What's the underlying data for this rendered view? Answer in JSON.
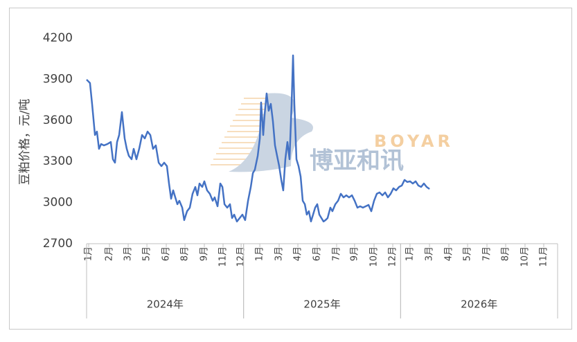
{
  "chart_data": {
    "type": "line",
    "y_axis_label": "豆粕价格，元/吨",
    "watermark": {
      "text_en": "BOYAR",
      "text_cn": "博亚和讯"
    },
    "xlim": [
      0,
      36
    ],
    "ylim": [
      2700,
      4200
    ],
    "yticks": [
      2700,
      3000,
      3300,
      3600,
      3900,
      4200
    ],
    "xticks": [
      {
        "value": 0.16,
        "label": "1月"
      },
      {
        "value": 1.75,
        "label": "2月"
      },
      {
        "value": 3.18,
        "label": "3月"
      },
      {
        "value": 4.61,
        "label": "5月"
      },
      {
        "value": 6.09,
        "label": "6月"
      },
      {
        "value": 7.52,
        "label": "8月"
      },
      {
        "value": 9.0,
        "label": "9月"
      },
      {
        "value": 10.43,
        "label": "11月"
      },
      {
        "value": 11.81,
        "label": "12月"
      },
      {
        "value": 13.24,
        "label": "1月"
      },
      {
        "value": 14.72,
        "label": "3月"
      },
      {
        "value": 16.15,
        "label": "4月"
      },
      {
        "value": 17.63,
        "label": "6月"
      },
      {
        "value": 19.11,
        "label": "7月"
      },
      {
        "value": 20.48,
        "label": "9月"
      },
      {
        "value": 21.97,
        "label": "10月"
      },
      {
        "value": 23.4,
        "label": "12月"
      },
      {
        "value": 24.72,
        "label": "1月"
      },
      {
        "value": 26.21,
        "label": "3月"
      },
      {
        "value": 27.69,
        "label": "4月"
      },
      {
        "value": 29.12,
        "label": "5月"
      },
      {
        "value": 30.6,
        "label": "7月"
      },
      {
        "value": 32.03,
        "label": "8月"
      },
      {
        "value": 33.51,
        "label": "10月"
      },
      {
        "value": 34.94,
        "label": "11月"
      }
    ],
    "year_groups": [
      {
        "label": "2024年",
        "range": [
          0,
          12
        ]
      },
      {
        "label": "2025年",
        "range": [
          12,
          24
        ]
      },
      {
        "label": "2026年",
        "range": [
          24,
          36
        ]
      }
    ],
    "series": [
      {
        "color": "#4472c4",
        "x": [
          0,
          0.26,
          0.42,
          0.64,
          0.79,
          0.95,
          1.11,
          1.32,
          1.59,
          1.85,
          2.01,
          2.17,
          2.33,
          2.49,
          2.7,
          2.91,
          3.07,
          3.23,
          3.44,
          3.6,
          3.81,
          4.02,
          4.24,
          4.45,
          4.66,
          4.87,
          5.08,
          5.29,
          5.51,
          5.72,
          5.93,
          6.14,
          6.3,
          6.46,
          6.62,
          6.78,
          6.94,
          7.09,
          7.31,
          7.46,
          7.68,
          7.89,
          8.1,
          8.31,
          8.47,
          8.63,
          8.84,
          9.0,
          9.21,
          9.42,
          9.64,
          9.79,
          10.01,
          10.22,
          10.38,
          10.54,
          10.75,
          10.96,
          11.12,
          11.28,
          11.49,
          11.7,
          11.91,
          12.12,
          12.34,
          12.55,
          12.71,
          12.86,
          13.08,
          13.24,
          13.34,
          13.5,
          13.61,
          13.76,
          13.92,
          14.08,
          14.24,
          14.4,
          14.56,
          14.72,
          14.88,
          15.03,
          15.19,
          15.35,
          15.51,
          15.67,
          15.78,
          15.88,
          16.04,
          16.2,
          16.36,
          16.52,
          16.68,
          16.83,
          16.99,
          17.15,
          17.31,
          17.47,
          17.63,
          17.79,
          17.95,
          18.11,
          18.26,
          18.42,
          18.63,
          18.79,
          19.01,
          19.22,
          19.43,
          19.64,
          19.85,
          20.06,
          20.28,
          20.49,
          20.7,
          20.91,
          21.12,
          21.33,
          21.55,
          21.76,
          21.97,
          22.18,
          22.39,
          22.61,
          22.82,
          23.03,
          23.24,
          23.45,
          23.66,
          23.88,
          24.09,
          24.3,
          24.51,
          24.72,
          24.93,
          25.15,
          25.36,
          25.57,
          25.78,
          25.99,
          26.21
        ],
        "values": [
          3897,
          3872,
          3720,
          3493,
          3518,
          3392,
          3427,
          3417,
          3427,
          3442,
          3316,
          3291,
          3442,
          3493,
          3660,
          3468,
          3392,
          3341,
          3316,
          3392,
          3316,
          3392,
          3493,
          3468,
          3518,
          3493,
          3392,
          3417,
          3291,
          3266,
          3291,
          3266,
          3139,
          3028,
          3089,
          3038,
          2988,
          3013,
          2963,
          2872,
          2937,
          2963,
          3064,
          3114,
          3053,
          3139,
          3114,
          3155,
          3089,
          3064,
          3013,
          3038,
          2973,
          3139,
          3114,
          2988,
          2963,
          2988,
          2887,
          2912,
          2862,
          2887,
          2912,
          2872,
          3013,
          3114,
          3215,
          3240,
          3341,
          3468,
          3730,
          3493,
          3645,
          3796,
          3670,
          3720,
          3594,
          3417,
          3341,
          3266,
          3165,
          3089,
          3316,
          3442,
          3316,
          3720,
          4074,
          3720,
          3316,
          3266,
          3190,
          3013,
          2988,
          2912,
          2937,
          2862,
          2912,
          2963,
          2988,
          2912,
          2887,
          2862,
          2872,
          2887,
          2963,
          2937,
          2988,
          3013,
          3064,
          3038,
          3053,
          3038,
          3053,
          3013,
          2963,
          2973,
          2963,
          2973,
          2983,
          2937,
          3013,
          3064,
          3074,
          3053,
          3074,
          3038,
          3064,
          3104,
          3089,
          3114,
          3124,
          3165,
          3150,
          3155,
          3139,
          3155,
          3124,
          3114,
          3139,
          3114,
          3099
        ]
      }
    ]
  }
}
